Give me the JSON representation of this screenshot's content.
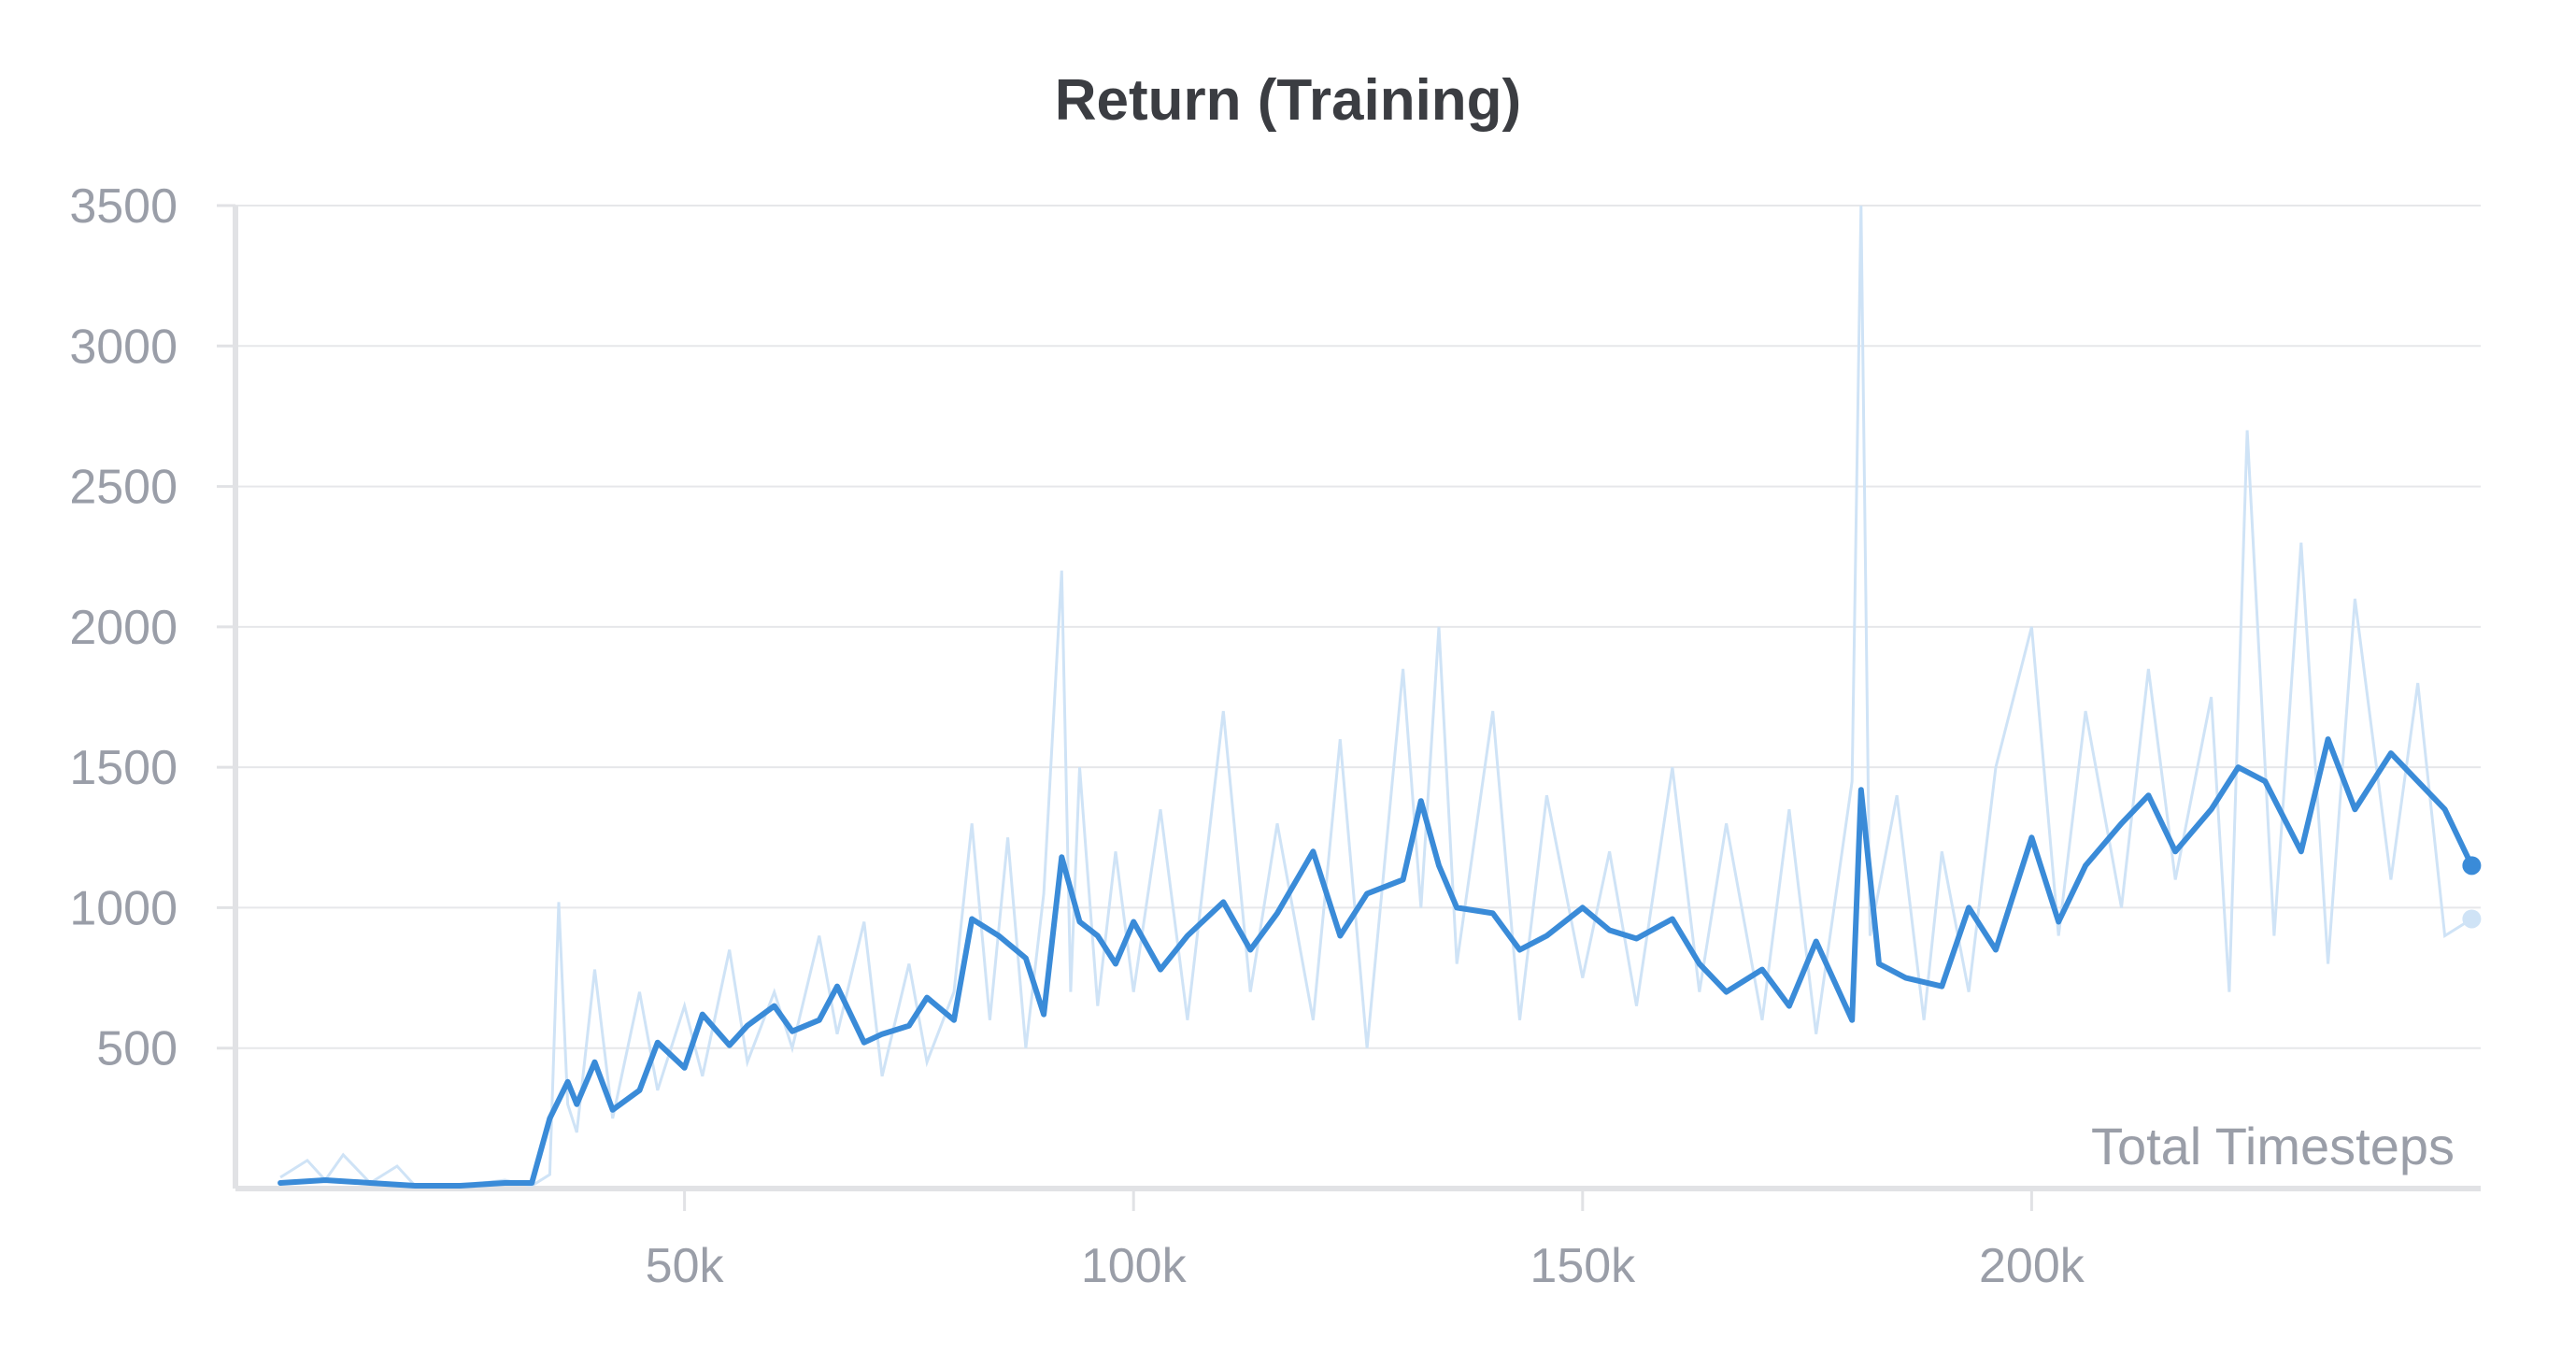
{
  "chart_data": {
    "type": "line",
    "title": "Return (Training)",
    "xlabel": "Total Timesteps",
    "ylabel": "",
    "xlim": [
      0,
      250000
    ],
    "ylim": [
      0,
      3500
    ],
    "x_ticks": [
      50000,
      100000,
      150000,
      200000
    ],
    "x_tick_labels": [
      "50k",
      "100k",
      "150k",
      "200k"
    ],
    "y_ticks": [
      500,
      1000,
      1500,
      2000,
      2500,
      3000,
      3500
    ],
    "y_tick_labels": [
      "500",
      "1000",
      "1500",
      "2000",
      "2500",
      "3000",
      "3500"
    ],
    "grid": "horizontal",
    "legend": "none",
    "colors": {
      "smoothed": "#3a8bd8",
      "raw": "#cfe3f6",
      "grid": "#e6e7ea",
      "axis": "#e1e2e5"
    },
    "smoothed_series": {
      "x": [
        5000,
        10000,
        15000,
        20000,
        25000,
        30000,
        33000,
        35000,
        37000,
        38000,
        40000,
        42000,
        45000,
        47000,
        50000,
        52000,
        55000,
        57000,
        60000,
        62000,
        65000,
        67000,
        70000,
        72000,
        75000,
        77000,
        80000,
        82000,
        85000,
        88000,
        90000,
        92000,
        94000,
        96000,
        98000,
        100000,
        103000,
        106000,
        110000,
        113000,
        116000,
        120000,
        123000,
        126000,
        130000,
        132000,
        134000,
        136000,
        140000,
        143000,
        146000,
        150000,
        153000,
        156000,
        160000,
        163000,
        166000,
        170000,
        173000,
        176000,
        180000,
        181000,
        183000,
        186000,
        190000,
        193000,
        196000,
        200000,
        203000,
        206000,
        210000,
        213000,
        216000,
        220000,
        223000,
        226000,
        230000,
        233000,
        236000,
        240000,
        243000,
        246000,
        249000
      ],
      "y": [
        20,
        30,
        20,
        10,
        10,
        20,
        20,
        250,
        380,
        300,
        450,
        280,
        350,
        520,
        430,
        620,
        510,
        580,
        650,
        560,
        600,
        720,
        520,
        550,
        580,
        680,
        600,
        960,
        900,
        820,
        620,
        1180,
        950,
        900,
        800,
        950,
        780,
        900,
        1020,
        850,
        980,
        1200,
        900,
        1050,
        1100,
        1380,
        1150,
        1000,
        980,
        850,
        900,
        1000,
        920,
        890,
        960,
        800,
        700,
        780,
        650,
        880,
        600,
        1420,
        800,
        750,
        720,
        1000,
        850,
        1250,
        950,
        1150,
        1300,
        1400,
        1200,
        1350,
        1500,
        1450,
        1200,
        1600,
        1350,
        1550,
        1450,
        1350,
        1150
      ]
    },
    "raw_series": {
      "x": [
        5000,
        8000,
        10000,
        12000,
        15000,
        18000,
        20000,
        25000,
        30000,
        33000,
        35000,
        36000,
        37000,
        38000,
        40000,
        42000,
        45000,
        47000,
        50000,
        52000,
        55000,
        57000,
        60000,
        62000,
        65000,
        67000,
        70000,
        72000,
        75000,
        77000,
        80000,
        82000,
        84000,
        86000,
        88000,
        90000,
        92000,
        93000,
        94000,
        96000,
        98000,
        100000,
        103000,
        106000,
        110000,
        113000,
        116000,
        120000,
        123000,
        126000,
        130000,
        132000,
        134000,
        136000,
        140000,
        143000,
        146000,
        150000,
        153000,
        156000,
        160000,
        163000,
        166000,
        170000,
        173000,
        176000,
        180000,
        181000,
        182000,
        185000,
        188000,
        190000,
        193000,
        196000,
        200000,
        203000,
        206000,
        210000,
        213000,
        216000,
        220000,
        222000,
        224000,
        227000,
        230000,
        233000,
        236000,
        240000,
        243000,
        246000,
        249000
      ],
      "y": [
        40,
        100,
        30,
        120,
        20,
        80,
        10,
        10,
        30,
        10,
        50,
        1020,
        300,
        200,
        780,
        250,
        700,
        350,
        650,
        400,
        850,
        450,
        700,
        500,
        900,
        550,
        950,
        400,
        800,
        450,
        700,
        1300,
        600,
        1250,
        500,
        1050,
        2200,
        700,
        1500,
        650,
        1200,
        700,
        1350,
        600,
        1700,
        700,
        1300,
        600,
        1600,
        500,
        1850,
        1000,
        2000,
        800,
        1700,
        600,
        1400,
        750,
        1200,
        650,
        1500,
        700,
        1300,
        600,
        1350,
        550,
        1450,
        3500,
        900,
        1400,
        600,
        1200,
        700,
        1500,
        2000,
        900,
        1700,
        1000,
        1850,
        1100,
        1750,
        700,
        2700,
        900,
        2300,
        800,
        2100,
        1100,
        1800,
        900,
        960
      ]
    }
  }
}
